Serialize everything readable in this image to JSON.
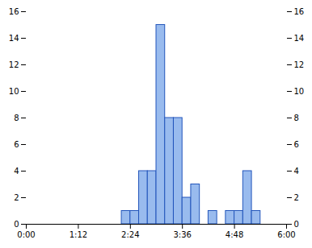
{
  "chart_data": {
    "type": "histogram",
    "bins": [
      132,
      144,
      156,
      168,
      180,
      192,
      204,
      216,
      228,
      240,
      252,
      264,
      276,
      288,
      300,
      312,
      324
    ],
    "values": [
      1,
      1,
      4,
      4,
      15,
      8,
      8,
      2,
      3,
      0,
      1,
      0,
      1,
      1,
      4,
      1
    ],
    "color": "#99bbee",
    "xlim": [
      0,
      360
    ],
    "xticks": [
      {
        "value": 0,
        "label": "0:00"
      },
      {
        "value": 72,
        "label": "1:12"
      },
      {
        "value": 144,
        "label": "2:24"
      },
      {
        "value": 216,
        "label": "3:36"
      },
      {
        "value": 288,
        "label": "4:48"
      },
      {
        "value": 360,
        "label": "6:00"
      }
    ],
    "ylim": [
      0,
      16
    ],
    "yticks": [
      0,
      2,
      4,
      6,
      8,
      10,
      12,
      14,
      16
    ],
    "grid": false
  }
}
